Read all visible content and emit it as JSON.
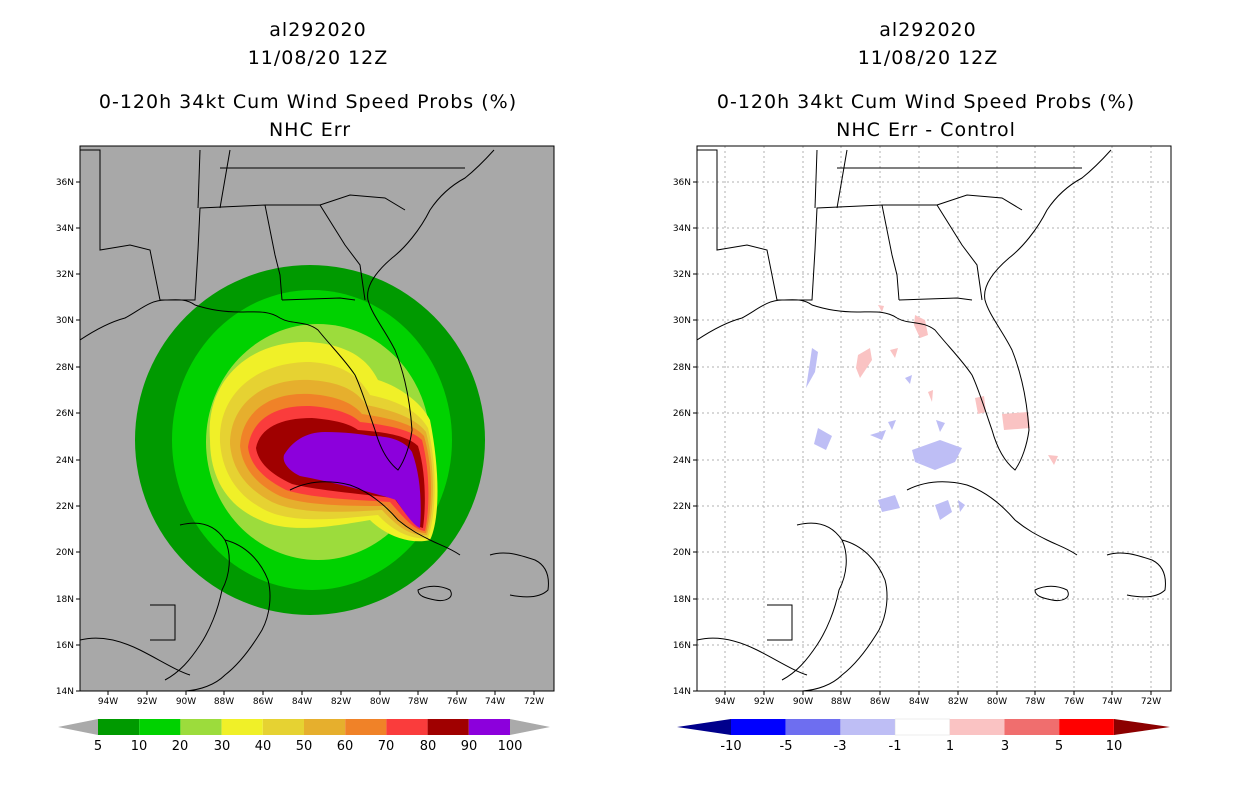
{
  "left": {
    "storm": "al292020",
    "datetime": "11/08/20 12Z",
    "product": "0-120h 34kt Cum Wind Speed Probs (%)",
    "subtitle": "NHC Err",
    "background": "#a8a8a8"
  },
  "right": {
    "storm": "al292020",
    "datetime": "11/08/20 12Z",
    "product": "0-120h 34kt Cum Wind Speed Probs (%)",
    "subtitle": "NHC Err - Control",
    "background": "#ffffff"
  },
  "lat_labels": [
    "36N",
    "34N",
    "32N",
    "30N",
    "28N",
    "26N",
    "24N",
    "22N",
    "20N",
    "18N",
    "16N",
    "14N"
  ],
  "lon_labels": [
    "94W",
    "92W",
    "90W",
    "88W",
    "86W",
    "84W",
    "82W",
    "80W",
    "78W",
    "76W",
    "74W",
    "72W"
  ],
  "left_colorbar": {
    "labels": [
      "5",
      "10",
      "20",
      "30",
      "40",
      "50",
      "60",
      "70",
      "80",
      "90",
      "100"
    ],
    "colors": [
      "#009a00",
      "#00d200",
      "#9cdc3c",
      "#f0f028",
      "#e6d232",
      "#e6af2d",
      "#f08228",
      "#fa3c3c",
      "#a00000",
      "#8c00dc"
    ]
  },
  "right_colorbar": {
    "labels": [
      "-10",
      "-5",
      "-3",
      "-1",
      "1",
      "3",
      "5",
      "10"
    ],
    "colors": [
      "#0000ff",
      "#6e6ef0",
      "#bebef5",
      "#ffffff",
      "#fac3c3",
      "#f06e6e",
      "#ff0000"
    ],
    "end_low": "#00008c",
    "end_high": "#8c0000"
  }
}
